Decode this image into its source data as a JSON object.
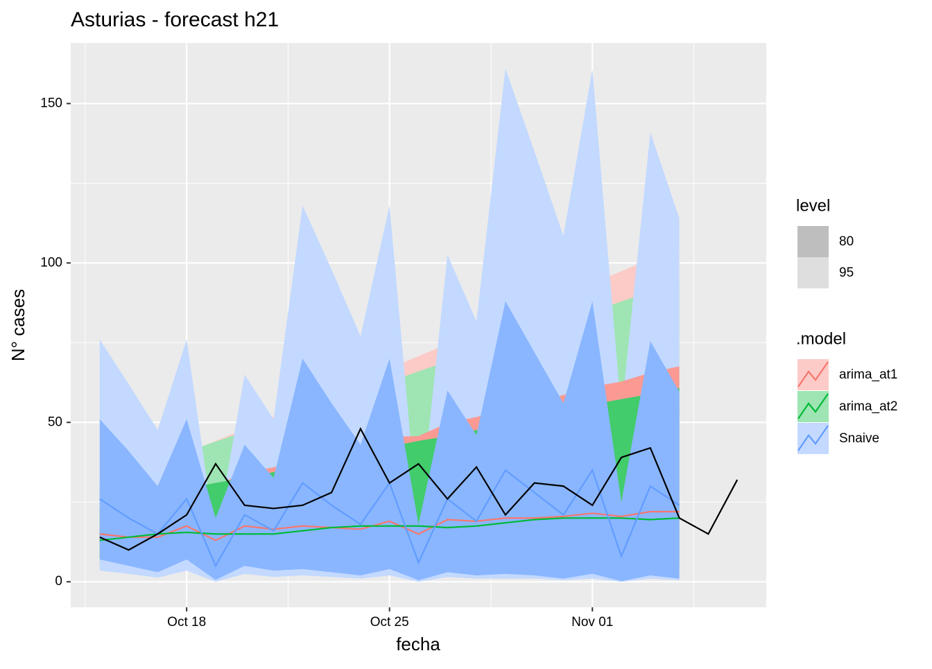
{
  "chart_data": {
    "type": "line",
    "title": "Asturias - forecast h21",
    "x_label": "fecha",
    "y_label": "N° cases",
    "xlim": [
      "10-14",
      "11-07"
    ],
    "xticks": [
      {
        "value": "10-18",
        "label": "Oct 18"
      },
      {
        "value": "10-25",
        "label": "Oct 25"
      },
      {
        "value": "11-01",
        "label": "Nov 01"
      }
    ],
    "ylim": [
      -8,
      169
    ],
    "yticks": [
      0,
      50,
      100,
      150
    ],
    "grid": true,
    "level_title": "level",
    "levels": [
      80,
      95
    ],
    "legend_title": ".model",
    "x": [
      "10-15",
      "10-16",
      "10-17",
      "10-18",
      "10-19",
      "10-20",
      "10-21",
      "10-22",
      "10-23",
      "10-24",
      "10-25",
      "10-26",
      "10-27",
      "10-28",
      "10-29",
      "10-30",
      "10-31",
      "11-01",
      "11-02",
      "11-03",
      "11-04"
    ],
    "series": [
      {
        "name": "arima_at1",
        "color": "#F8766D",
        "values": [
          15,
          14,
          14,
          17.5,
          13,
          17.5,
          16.5,
          17.5,
          17,
          16.5,
          19,
          15,
          19.5,
          19,
          20,
          20,
          20.5,
          21.5,
          20.5,
          22,
          22
        ],
        "intervals": [
          {
            "lower": [
              8,
              7,
              6,
              8,
              5,
              7,
              6,
              6,
              5.5,
              5,
              6,
              4,
              5,
              4.5,
              4.5,
              4,
              4,
              4,
              3.5,
              4,
              3.5
            ],
            "upper": [
              22.7,
              24.4,
              26.4,
              30.1,
              30.2,
              34.3,
              35.9,
              38.5,
              40.3,
              42.2,
              45.4,
              45.7,
              49.8,
              51.7,
              54.2,
              56.3,
              58.6,
              61.2,
              62.8,
              65.6,
              67.6
            ]
          },
          {
            "lower": [
              5,
              4,
              3,
              4,
              2,
              3,
              2,
              2,
              2,
              1.5,
              2,
              1,
              1.5,
              1,
              1,
              1,
              1,
              1,
              0.5,
              1,
              0.5
            ],
            "upper": [
              29,
              32.8,
              36.6,
              40.4,
              44.2,
              48,
              51.8,
              55.6,
              59.4,
              63.2,
              67,
              70.8,
              74.6,
              78.4,
              82.2,
              86,
              89.8,
              93.6,
              97.4,
              101.2,
              105
            ]
          }
        ]
      },
      {
        "name": "arima_at2",
        "color": "#00BA38",
        "values": [
          13,
          14,
          15,
          15.5,
          15,
          15,
          15,
          16,
          17,
          17.5,
          17.5,
          17.5,
          17,
          17.5,
          18.5,
          19.5,
          20,
          20,
          20,
          19.5,
          20
        ],
        "intervals": [
          {
            "lower": [
              7,
              7,
              7,
              7.5,
              6,
              6,
              6,
              6.5,
              6.5,
              6.5,
              6,
              6,
              5.5,
              5.5,
              5.5,
              5.5,
              5,
              5,
              5,
              4.5,
              4.5
            ],
            "upper": [
              23.1,
              25.3,
              27.5,
              29.4,
              31,
              32.7,
              34.4,
              36.6,
              38.7,
              40.7,
              42.4,
              44.2,
              45.7,
              47.6,
              49.8,
              51.9,
              53.9,
              55.6,
              57.3,
              58.9,
              60.8
            ]
          },
          {
            "lower": [
              4,
              3.5,
              3.5,
              3.5,
              3,
              2.5,
              2.5,
              2.5,
              2.5,
              2,
              2,
              2,
              1.5,
              1.5,
              1.5,
              1.5,
              1,
              1,
              1,
              1,
              1
            ],
            "upper": [
              31.4,
              34.5,
              37.7,
              40.8,
              44,
              47.1,
              50.2,
              53.4,
              56.5,
              59.7,
              62.8,
              66,
              69.1,
              72.2,
              75.4,
              78.5,
              81.6,
              84.8,
              87.9,
              91.1,
              94.2
            ]
          }
        ]
      },
      {
        "name": "Snaive",
        "color": "#619CFF",
        "values": [
          26,
          20,
          15,
          26,
          5,
          21,
          16,
          31,
          24,
          18,
          31,
          6,
          26,
          19,
          35,
          28,
          21,
          35,
          8,
          30,
          24
        ],
        "intervals": [
          {
            "lower": [
              7,
              5,
              3,
              7,
              0.6,
              5,
              3.5,
              4,
              3,
              2,
              4,
              0.5,
              3,
              2,
              2.5,
              2,
              1,
              2.5,
              0.2,
              2,
              1
            ],
            "upper": [
              51,
              41,
              30,
              51,
              20,
              43,
              32.6,
              70,
              56,
              43,
              70,
              18,
              60,
              46,
              88,
              72,
              56,
              88,
              25,
              75.5,
              59.6
            ]
          },
          {
            "lower": [
              3.5,
              2.5,
              1.3,
              3.5,
              0,
              2.5,
              1.5,
              2,
              1.5,
              1,
              2,
              0,
              1.5,
              1,
              1,
              1,
              0.5,
              1,
              0,
              1,
              0.5
            ],
            "upper": [
              76,
              62,
              47.6,
              76,
              13,
              65,
              51,
              118,
              98,
              77,
              118,
              17,
              102.6,
              81.7,
              161,
              135,
              108.5,
              160.7,
              53,
              141,
              114
            ]
          }
        ]
      }
    ],
    "actual": {
      "color": "#000000",
      "x": [
        "10-15",
        "10-16",
        "10-17",
        "10-18",
        "10-19",
        "10-20",
        "10-21",
        "10-22",
        "10-23",
        "10-24",
        "10-25",
        "10-26",
        "10-27",
        "10-28",
        "10-29",
        "10-30",
        "10-31",
        "11-01",
        "11-02",
        "11-03",
        "11-04",
        "11-05",
        "11-06"
      ],
      "values": [
        14,
        10,
        15,
        21,
        37,
        24,
        23,
        24,
        28,
        48,
        31,
        37,
        26,
        36,
        21,
        31,
        30,
        24,
        39,
        42,
        20,
        15,
        32
      ]
    }
  }
}
